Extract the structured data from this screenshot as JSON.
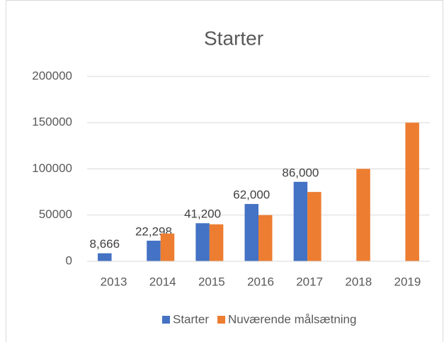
{
  "chart_data": {
    "type": "bar",
    "title": "Starter",
    "categories": [
      "2013",
      "2014",
      "2015",
      "2016",
      "2017",
      "2018",
      "2019"
    ],
    "series": [
      {
        "name": "Starter",
        "color": "#4472c4",
        "values": [
          8666,
          22298,
          41200,
          62000,
          86000,
          null,
          null
        ],
        "value_labels": [
          "8,666",
          "22,298",
          "41,200",
          "62,000",
          "86,000",
          null,
          null
        ]
      },
      {
        "name": "Nuværende målsætning",
        "color": "#ed7d31",
        "values": [
          null,
          30000,
          40000,
          50000,
          75000,
          100000,
          150000
        ]
      }
    ],
    "ylim": [
      0,
      200000
    ],
    "yticks": [
      0,
      50000,
      100000,
      150000,
      200000
    ],
    "grid": true,
    "legend": "bottom"
  }
}
